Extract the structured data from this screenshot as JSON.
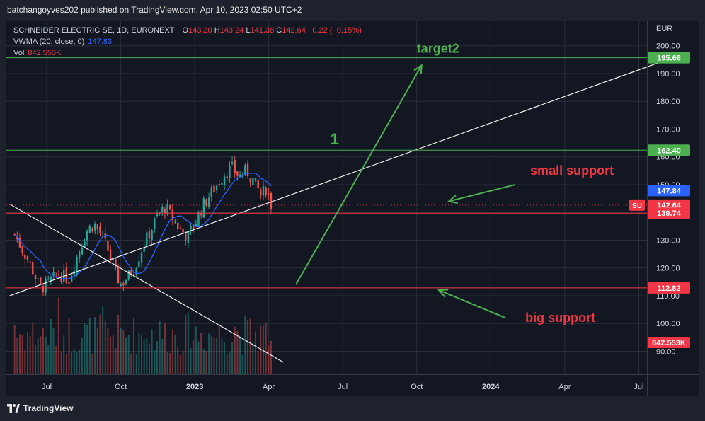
{
  "publisher": "batchangoyves202 published on TradingView.com, Apr 10, 2023 02:50 UTC+2",
  "legend": {
    "symbol": "SCHNEIDER ELECTRIC SE, 1D, EURONEXT",
    "o_label": "O",
    "o": "143.20",
    "h_label": "H",
    "h": "143.24",
    "l_label": "L",
    "l": "141.38",
    "c_label": "C",
    "c": "142.64",
    "change": "−0.22 (−0.15%)",
    "vwma_label": "VWMA (20, close, 0)",
    "vwma": "147.83",
    "vol_label": "Vol",
    "vol": "842.553K"
  },
  "footer": {
    "brand": "TradingView",
    "logo_icon": "tradingview-logo-icon"
  },
  "colors": {
    "background": "#131722",
    "grid": "#2a2e39",
    "up": "#26a69a",
    "down": "#ef5350",
    "vwma": "#2962ff",
    "green_line": "#4caf50",
    "red_line": "#f23645",
    "annotation_green": "#4caf50",
    "annotation_red": "#f23645"
  },
  "chart_data": {
    "type": "candlestick",
    "symbol": "SCHNEIDER ELECTRIC SE",
    "interval": "1D",
    "currency": "EUR",
    "y_axis": {
      "scale": "linear",
      "ylim": [
        87,
        208
      ],
      "ticks": [
        "90.00",
        "100.00",
        "110.00",
        "120.00",
        "130.00",
        "140.00",
        "150.00",
        "160.00",
        "170.00",
        "180.00",
        "190.00",
        "200.00"
      ],
      "tick_values": [
        90,
        100,
        110,
        120,
        130,
        140,
        150,
        160,
        170,
        180,
        190,
        200
      ]
    },
    "x_axis": {
      "ticks": [
        "Jul",
        "Oct",
        "2023",
        "Apr",
        "Jul",
        "Oct",
        "2024",
        "Apr",
        "Jul"
      ],
      "tick_months": [
        0,
        3,
        6,
        9,
        12,
        15,
        18,
        21,
        24
      ]
    },
    "price_path": [
      {
        "m": -1.3,
        "close": 132
      },
      {
        "m": -1.0,
        "close": 127
      },
      {
        "m": -0.6,
        "close": 120
      },
      {
        "m": -0.3,
        "close": 113
      },
      {
        "m": 0.0,
        "close": 114
      },
      {
        "m": 0.5,
        "close": 118
      },
      {
        "m": 0.9,
        "close": 116
      },
      {
        "m": 1.3,
        "close": 126
      },
      {
        "m": 1.6,
        "close": 133
      },
      {
        "m": 1.9,
        "close": 136
      },
      {
        "m": 2.2,
        "close": 132
      },
      {
        "m": 2.5,
        "close": 126
      },
      {
        "m": 2.8,
        "close": 118
      },
      {
        "m": 3.0,
        "close": 114
      },
      {
        "m": 3.3,
        "close": 117
      },
      {
        "m": 3.6,
        "close": 121
      },
      {
        "m": 3.9,
        "close": 128
      },
      {
        "m": 4.2,
        "close": 133
      },
      {
        "m": 4.5,
        "close": 139
      },
      {
        "m": 4.8,
        "close": 142
      },
      {
        "m": 5.1,
        "close": 138
      },
      {
        "m": 5.4,
        "close": 134
      },
      {
        "m": 5.7,
        "close": 131
      },
      {
        "m": 6.0,
        "close": 136
      },
      {
        "m": 6.3,
        "close": 142
      },
      {
        "m": 6.6,
        "close": 146
      },
      {
        "m": 6.9,
        "close": 150
      },
      {
        "m": 7.2,
        "close": 154
      },
      {
        "m": 7.5,
        "close": 156
      },
      {
        "m": 7.8,
        "close": 153
      },
      {
        "m": 8.1,
        "close": 155
      },
      {
        "m": 8.4,
        "close": 151
      },
      {
        "m": 8.7,
        "close": 146
      },
      {
        "m": 8.9,
        "close": 149
      },
      {
        "m": 9.1,
        "close": 142.64
      }
    ],
    "vwma": {
      "label": "VWMA (20, close, 0)",
      "last": 147.83
    },
    "volume_last": "842.553K",
    "levels": [
      {
        "value": 195.68,
        "label": "195.68",
        "color": "#4caf50"
      },
      {
        "value": 162.4,
        "label": "162.40",
        "color": "#4caf50"
      },
      {
        "value": 147.84,
        "label": "147.84",
        "color": "#2962ff"
      },
      {
        "value": 142.64,
        "label": "142.64",
        "color": "#f23645",
        "tag": "SU"
      },
      {
        "value": 139.74,
        "label": "139.74",
        "color": "#f23645"
      },
      {
        "value": 112.82,
        "label": "112.82",
        "color": "#f23645"
      }
    ],
    "volume_label": {
      "label": "842.553K",
      "color": "#f23645"
    },
    "trendlines": [
      {
        "from": {
          "m": -1.5,
          "y": 110
        },
        "to": {
          "m": 25.0,
          "y": 194.5
        },
        "color": "#ffffff"
      },
      {
        "from": {
          "m": -1.5,
          "y": 143
        },
        "to": {
          "m": 9.6,
          "y": 86
        },
        "color": "#ffffff"
      }
    ],
    "annotations": [
      {
        "text": "target2",
        "m": 15.0,
        "y": 197.5,
        "color": "#4caf50"
      },
      {
        "text": "1",
        "m": 11.5,
        "y": 164.5,
        "color": "#4caf50"
      },
      {
        "text": "small support",
        "m": 19.6,
        "y": 153.5,
        "color": "#f23645"
      },
      {
        "text": "big support",
        "m": 19.4,
        "y": 100.5,
        "color": "#f23645"
      }
    ],
    "arrows": [
      {
        "from": {
          "m": 10.1,
          "y": 114
        },
        "to": {
          "m": 15.2,
          "y": 193
        },
        "color": "#4caf50"
      },
      {
        "from": {
          "m": 19.0,
          "y": 150
        },
        "to": {
          "m": 16.3,
          "y": 144
        },
        "color": "#4caf50"
      },
      {
        "from": {
          "m": 18.6,
          "y": 102
        },
        "to": {
          "m": 15.9,
          "y": 112
        },
        "color": "#4caf50"
      }
    ]
  }
}
